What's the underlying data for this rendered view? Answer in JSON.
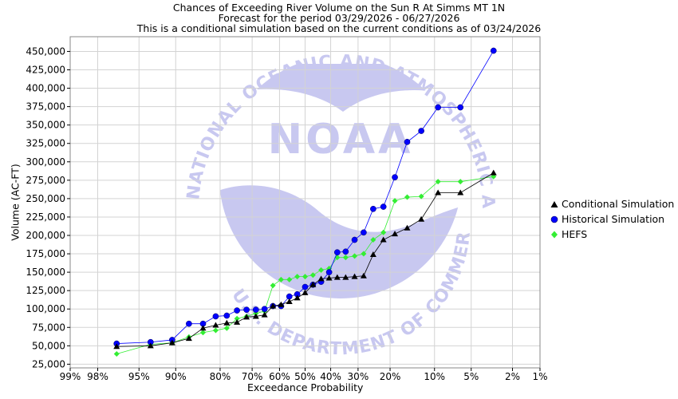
{
  "header": {
    "line1": "Chances of Exceeding River Volume on the Sun R At Simms MT 1N",
    "line2": "Forecast for the period 03/29/2026 - 06/27/2026",
    "line3": "This is a conditional simulation based on the current conditions as of 03/24/2026"
  },
  "watermark": {
    "logo_text": "NOAA",
    "ring_text": "NATIONAL OCEANIC AND ATMOSPHERIC ADMINISTRATION",
    "lower_text": "U.S. DEPARTMENT OF COMMERCE"
  },
  "colors": {
    "conditional": "#000000",
    "historical": "#0000ff",
    "hefs": "#33ee33",
    "grid": "#d3d3d3",
    "watermark": "#c8c8f0"
  },
  "chart_data": {
    "type": "scatter",
    "xlabel": "Exceedance Probability",
    "ylabel": "Volume (AC-FT)",
    "x_scale": "normal-probability",
    "x_ticks": [
      99,
      98,
      95,
      90,
      80,
      70,
      60,
      50,
      40,
      30,
      20,
      10,
      5,
      2,
      1
    ],
    "x_tick_labels": [
      "99%",
      "98%",
      "95%",
      "90%",
      "80%",
      "70%",
      "60%",
      "50%",
      "40%",
      "30%",
      "20%",
      "10%",
      "5%",
      "2%",
      "1%"
    ],
    "y_ticks": [
      25000,
      50000,
      75000,
      100000,
      125000,
      150000,
      175000,
      200000,
      225000,
      250000,
      275000,
      300000,
      325000,
      350000,
      375000,
      400000,
      425000,
      450000
    ],
    "y_tick_labels": [
      "25,000",
      "50,000",
      "75,000",
      "100,000",
      "125,000",
      "150,000",
      "175,000",
      "200,000",
      "225,000",
      "250,000",
      "275,000",
      "300,000",
      "325,000",
      "350,000",
      "375,000",
      "400,000",
      "425,000",
      "450,000"
    ],
    "ylim": [
      20000,
      470000
    ],
    "grid": true,
    "legend_position": "right",
    "series": [
      {
        "name": "Conditional Simulation",
        "marker": "triangle",
        "x": [
          96.9,
          93.7,
          90.6,
          87.5,
          84.4,
          81.2,
          78.1,
          75.0,
          71.9,
          68.7,
          65.6,
          62.5,
          59.4,
          56.2,
          53.1,
          50.0,
          46.9,
          43.7,
          40.6,
          37.5,
          34.4,
          31.2,
          28.1,
          25.0,
          21.9,
          18.7,
          15.6,
          12.5,
          9.4,
          6.2,
          3.1
        ],
        "y": [
          49000,
          50000,
          54000,
          60000,
          74000,
          78000,
          81000,
          82000,
          89000,
          90000,
          92000,
          104000,
          106000,
          110000,
          115000,
          122000,
          133000,
          141000,
          142000,
          143000,
          143000,
          144000,
          145000,
          174000,
          194000,
          202000,
          210000,
          222000,
          258000,
          258000,
          285000
        ]
      },
      {
        "name": "Historical Simulation",
        "marker": "circle",
        "x": [
          96.9,
          93.7,
          90.6,
          87.5,
          84.4,
          81.2,
          78.1,
          75.0,
          71.9,
          68.7,
          65.6,
          62.5,
          59.4,
          56.2,
          53.1,
          50.0,
          46.9,
          43.7,
          40.6,
          37.5,
          34.4,
          31.2,
          28.1,
          25.0,
          21.9,
          18.7,
          15.6,
          12.5,
          9.4,
          6.2,
          3.1
        ],
        "y": [
          53000,
          55000,
          58000,
          80000,
          80000,
          90000,
          91000,
          98000,
          99000,
          99000,
          100000,
          104000,
          104000,
          117000,
          120000,
          130000,
          133000,
          137000,
          150000,
          177000,
          178000,
          194000,
          204000,
          236000,
          239000,
          279000,
          327000,
          342000,
          374000,
          374000,
          451000
        ]
      },
      {
        "name": "HEFS",
        "marker": "diamond",
        "x": [
          96.9,
          93.7,
          90.6,
          87.5,
          84.4,
          81.2,
          78.1,
          75.0,
          71.9,
          68.7,
          65.6,
          62.5,
          59.4,
          56.2,
          53.1,
          50.0,
          46.9,
          43.7,
          40.6,
          37.5,
          34.4,
          31.2,
          28.1,
          25.0,
          21.9,
          18.7,
          15.6,
          12.5,
          9.4,
          6.2,
          3.1
        ],
        "y": [
          39000,
          52000,
          54000,
          62000,
          68000,
          71000,
          74000,
          87000,
          90000,
          94000,
          97000,
          132000,
          140000,
          140000,
          144000,
          144000,
          146000,
          153000,
          155000,
          170000,
          170000,
          172000,
          175000,
          194000,
          204000,
          247000,
          252000,
          253000,
          273000,
          273000,
          280000
        ]
      }
    ]
  }
}
